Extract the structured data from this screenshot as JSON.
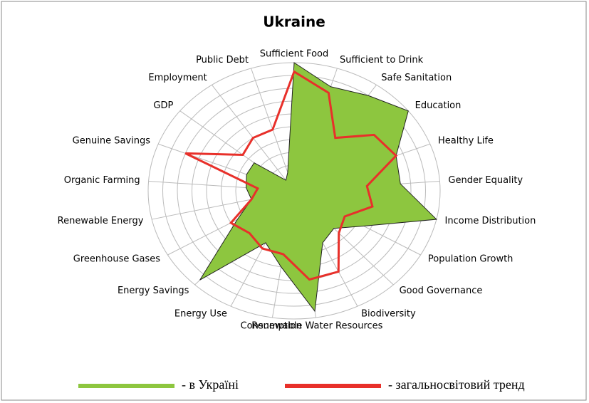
{
  "chart_data": {
    "type": "radar",
    "title": "Ukraine",
    "categories": [
      "Sufficient Food",
      "Sufficient to Drink",
      "Safe Sanitation",
      "Education",
      "Healthy Life",
      "Gender Equality",
      "Income Distribution",
      "Population Growth",
      "Good Governance",
      "Biodiversity",
      "Renewable Water Resources",
      "Consumption",
      "Energy Use",
      "Energy Savings",
      "Greenhouse Gases",
      "Renewable Energy",
      "Organic Farming",
      "Genuine Savings",
      "GDP",
      "Employment",
      "Public Debt"
    ],
    "rlim": [
      0,
      10
    ],
    "rticks": [
      0,
      1,
      2,
      3,
      4,
      5,
      6,
      7,
      8,
      9,
      10
    ],
    "grid": true,
    "series": [
      {
        "name": "- в Україні",
        "color": "#8dc63f",
        "values": [
          10,
          8.5,
          9,
          10,
          7.5,
          7.3,
          10,
          5.5,
          4,
          4.5,
          9.5,
          6,
          4.5,
          9.5,
          4.5,
          3,
          3.3,
          3.5,
          3.5,
          1,
          1.5
        ]
      },
      {
        "name": "- загальносвітовий тренд",
        "color": "#e8302a",
        "values": [
          9.3,
          8,
          5,
          7,
          7.5,
          5,
          5.5,
          4,
          4.5,
          7,
          7,
          5,
          5,
          4.5,
          5,
          3,
          2.5,
          8,
          4.5,
          5,
          5
        ]
      }
    ]
  }
}
